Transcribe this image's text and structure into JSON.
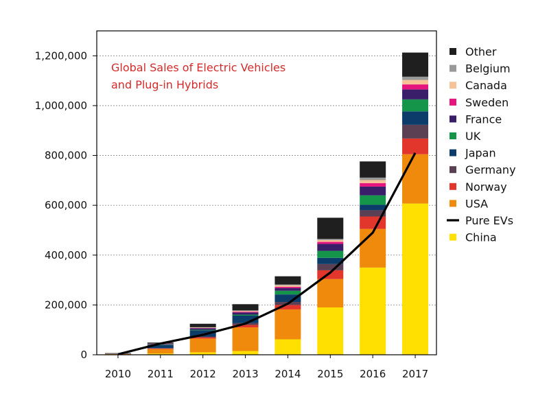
{
  "chart_data": {
    "type": "bar",
    "stacked": true,
    "title_lines": [
      "Global Sales of Electric Vehicles",
      "and Plug-in Hybrids"
    ],
    "title_color": "#d42a2a",
    "categories": [
      "2010",
      "2011",
      "2012",
      "2013",
      "2014",
      "2015",
      "2016",
      "2017"
    ],
    "ylim": [
      0,
      1300000
    ],
    "yticks": [
      0,
      200000,
      400000,
      600000,
      800000,
      1000000,
      1200000
    ],
    "ytick_labels": [
      "0",
      "200,000",
      "400,000",
      "600,000",
      "800,000",
      "1,000,000",
      "1,200,000"
    ],
    "grid": true,
    "legend_position": "right",
    "series": [
      {
        "name": "China",
        "color": "#ffe000",
        "values": [
          1000,
          5000,
          10000,
          15000,
          62000,
          190000,
          350000,
          607000
        ]
      },
      {
        "name": "USA",
        "color": "#ef8a0c",
        "values": [
          2000,
          18000,
          55000,
          95000,
          120000,
          114000,
          155000,
          198000
        ]
      },
      {
        "name": "Norway",
        "color": "#e2352b",
        "values": [
          500,
          2000,
          5000,
          10000,
          18000,
          35000,
          50000,
          63000
        ]
      },
      {
        "name": "Germany",
        "color": "#5a4052",
        "values": [
          500,
          2000,
          3000,
          7000,
          12000,
          25000,
          25000,
          55000
        ]
      },
      {
        "name": "Japan",
        "color": "#0c3c6a",
        "values": [
          1000,
          12000,
          25000,
          30000,
          30000,
          25000,
          22000,
          54000
        ]
      },
      {
        "name": "UK",
        "color": "#14954a",
        "values": [
          300,
          1500,
          2500,
          4000,
          15000,
          28000,
          38000,
          48000
        ]
      },
      {
        "name": "France",
        "color": "#3b1e6a",
        "values": [
          300,
          3000,
          6000,
          9000,
          11000,
          28000,
          35000,
          40000
        ]
      },
      {
        "name": "Sweden",
        "color": "#e6147d",
        "values": [
          100,
          500,
          1000,
          3000,
          5000,
          8000,
          14000,
          20000
        ]
      },
      {
        "name": "Canada",
        "color": "#f6c398",
        "values": [
          100,
          500,
          2000,
          3000,
          6000,
          7000,
          12000,
          18000
        ]
      },
      {
        "name": "Belgium",
        "color": "#999999",
        "values": [
          100,
          500,
          1000,
          2000,
          3000,
          5000,
          10000,
          13000
        ]
      },
      {
        "name": "Other",
        "color": "#1f1f1f",
        "values": [
          1000,
          4000,
          14000,
          25000,
          33000,
          85000,
          65000,
          97000
        ]
      }
    ],
    "line_series": {
      "name": "Pure EVs",
      "color": "#000000",
      "values": [
        2000,
        45000,
        80000,
        125000,
        205000,
        330000,
        490000,
        810000
      ]
    },
    "legend_order": [
      "Other",
      "Belgium",
      "Canada",
      "Sweden",
      "France",
      "UK",
      "Japan",
      "Germany",
      "Norway",
      "USA",
      "Pure EVs",
      "China"
    ]
  }
}
